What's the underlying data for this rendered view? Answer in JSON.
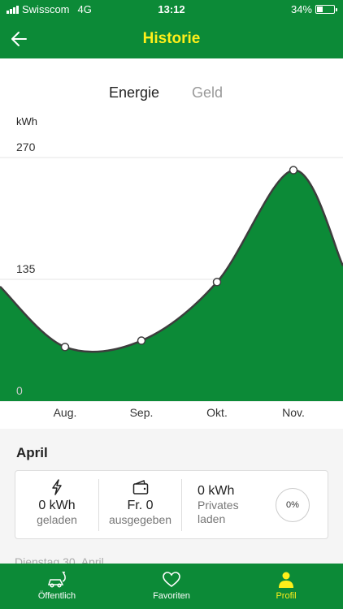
{
  "status_bar": {
    "carrier": "Swisscom",
    "network": "4G",
    "time": "13:12",
    "battery": "34%",
    "battery_fraction": 0.34
  },
  "header": {
    "title": "Historie"
  },
  "toggle": {
    "active": "Energie",
    "inactive": "Geld"
  },
  "chart_data": {
    "type": "area",
    "ylabel": "kWh",
    "yticks": [
      0,
      135,
      270
    ],
    "ylim": [
      0,
      270
    ],
    "categories": [
      "Aug.",
      "Sep.",
      "Okt.",
      "Nov."
    ],
    "values": [
      60,
      67,
      132,
      256
    ],
    "edge_values": [
      127,
      150
    ],
    "grid": true,
    "fill_color": "#0c8a37",
    "line_color": "#3d3d3d"
  },
  "summary": {
    "month": "April",
    "charged": {
      "value": "0 kWh",
      "label": "geladen"
    },
    "spent": {
      "value": "Fr. 0",
      "label": "ausgegeben"
    },
    "private": {
      "value": "0 kWh",
      "label_line1": "Privates",
      "label_line2": "laden"
    },
    "percent": "0%"
  },
  "next_entry_peek": "Dienstag 30. April",
  "tabs": [
    {
      "label": "Öffentlich",
      "icon": "car-charging-icon"
    },
    {
      "label": "Favoriten",
      "icon": "heart-icon"
    },
    {
      "label": "Profil",
      "icon": "person-icon",
      "active": true
    }
  ],
  "colors": {
    "brand_green": "#0c8a37",
    "accent_yellow": "#ffef1a"
  }
}
